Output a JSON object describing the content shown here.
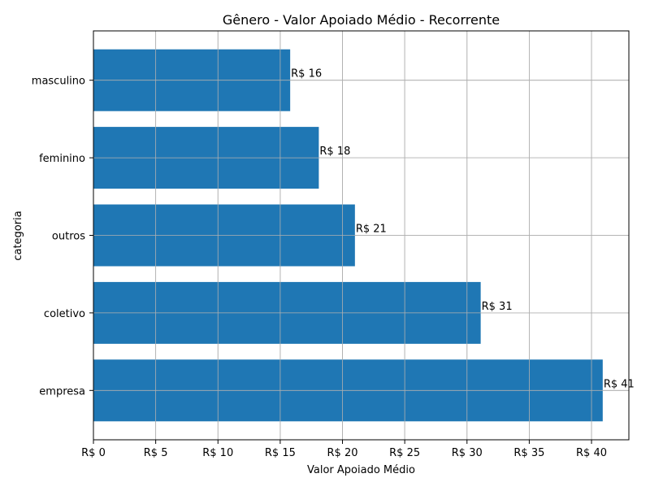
{
  "chart_data": {
    "type": "bar",
    "orientation": "horizontal",
    "title": "Gênero - Valor Apoiado Médio - Recorrente",
    "xlabel": "Valor Apoiado Médio",
    "ylabel": "categoria",
    "categories": [
      "masculino",
      "feminino",
      "outros",
      "coletivo",
      "empresa"
    ],
    "values": [
      15.8,
      18.1,
      21.0,
      31.1,
      40.9
    ],
    "data_labels": [
      "R$ 16",
      "R$ 18",
      "R$ 21",
      "R$ 31",
      "R$ 41"
    ],
    "xlim": [
      0,
      43
    ],
    "xticks": [
      0,
      5,
      10,
      15,
      20,
      25,
      30,
      35,
      40
    ],
    "xtick_labels": [
      "R$ 0",
      "R$ 5",
      "R$ 10",
      "R$ 15",
      "R$ 20",
      "R$ 25",
      "R$ 30",
      "R$ 35",
      "R$ 40"
    ],
    "grid": true,
    "colors": {
      "bar": "#1f77b4",
      "grid": "#b0b0b0",
      "axis": "#000000"
    }
  }
}
